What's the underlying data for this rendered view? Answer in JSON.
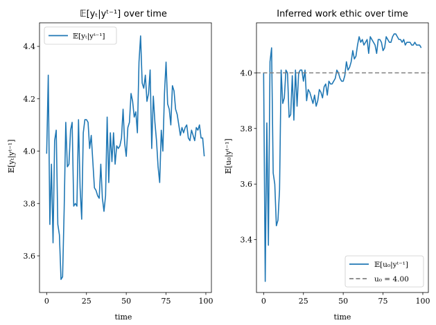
{
  "chart_data": [
    {
      "type": "line",
      "title": "𝔼[yₜ|yᵗ⁻¹] over time",
      "xlabel": "time",
      "ylabel": "𝔼[yₜ|yᵗ⁻¹]",
      "xlim": [
        -4.5,
        103.5
      ],
      "ylim": [
        3.46,
        4.49
      ],
      "xticks": [
        0,
        25,
        50,
        75,
        100
      ],
      "yticks": [
        3.6,
        3.8,
        4.0,
        4.2,
        4.4
      ],
      "ytick_labels": [
        "3.6",
        "3.8",
        "4.0",
        "4.2",
        "4.4"
      ],
      "legend_position": "upper left",
      "series": [
        {
          "name": "𝔼[yₜ|yᵗ⁻¹]",
          "color": "#1f77b4",
          "x": [
            0,
            1,
            2,
            3,
            4,
            5,
            6,
            7,
            8,
            9,
            10,
            11,
            12,
            13,
            14,
            15,
            16,
            17,
            18,
            19,
            20,
            21,
            22,
            23,
            24,
            25,
            26,
            27,
            28,
            29,
            30,
            31,
            32,
            33,
            34,
            35,
            36,
            37,
            38,
            39,
            40,
            41,
            42,
            43,
            44,
            45,
            46,
            47,
            48,
            49,
            50,
            51,
            52,
            53,
            54,
            55,
            56,
            57,
            58,
            59,
            60,
            61,
            62,
            63,
            64,
            65,
            66,
            67,
            68,
            69,
            70,
            71,
            72,
            73,
            74,
            75,
            76,
            77,
            78,
            79,
            80,
            81,
            82,
            83,
            84,
            85,
            86,
            87,
            88,
            89,
            90,
            91,
            92,
            93,
            94,
            95,
            96,
            97,
            98,
            99
          ],
          "y": [
            3.99,
            4.29,
            3.72,
            3.95,
            3.65,
            4.04,
            4.08,
            3.72,
            3.68,
            3.51,
            3.52,
            3.78,
            4.11,
            3.94,
            3.95,
            4.08,
            4.11,
            3.79,
            3.8,
            3.79,
            4.12,
            3.86,
            3.74,
            4.07,
            4.12,
            4.12,
            4.11,
            4.01,
            4.06,
            3.96,
            3.86,
            3.85,
            3.83,
            3.82,
            3.95,
            3.82,
            3.77,
            3.83,
            4.13,
            3.88,
            4.07,
            3.96,
            4.07,
            3.95,
            4.02,
            4.01,
            4.02,
            4.05,
            4.16,
            4.03,
            3.98,
            4.09,
            4.11,
            4.22,
            4.19,
            4.13,
            4.15,
            4.07,
            4.34,
            4.44,
            4.26,
            4.24,
            4.29,
            4.19,
            4.22,
            4.31,
            4.01,
            4.21,
            4.11,
            4.04,
            3.94,
            3.88,
            4.08,
            4.0,
            4.22,
            4.34,
            4.18,
            4.16,
            4.1,
            4.25,
            4.23,
            4.16,
            4.14,
            4.1,
            4.06,
            4.09,
            4.07,
            4.09,
            4.1,
            4.05,
            4.04,
            4.08,
            4.06,
            4.04,
            4.09,
            4.08,
            4.1,
            4.05,
            4.05,
            3.98
          ]
        }
      ]
    },
    {
      "type": "line",
      "title": "Inferred work ethic over time",
      "xlabel": "time",
      "ylabel": "𝔼[u₀|yᵗ⁻¹]",
      "xlim": [
        -4.5,
        103.5
      ],
      "ylim": [
        3.21,
        4.18
      ],
      "xticks": [
        0,
        25,
        50,
        75,
        100
      ],
      "yticks": [
        3.4,
        3.6,
        3.8,
        4.0
      ],
      "ytick_labels": [
        "3.4",
        "3.6",
        "3.8",
        "4.0"
      ],
      "legend_position": "lower right",
      "series": [
        {
          "name": "𝔼[u₀|yᵗ⁻¹]",
          "color": "#1f77b4",
          "style": "solid",
          "x": [
            0,
            1,
            2,
            3,
            4,
            5,
            6,
            7,
            8,
            9,
            10,
            11,
            12,
            13,
            14,
            15,
            16,
            17,
            18,
            19,
            20,
            21,
            22,
            23,
            24,
            25,
            26,
            27,
            28,
            29,
            30,
            31,
            32,
            33,
            34,
            35,
            36,
            37,
            38,
            39,
            40,
            41,
            42,
            43,
            44,
            45,
            46,
            47,
            48,
            49,
            50,
            51,
            52,
            53,
            54,
            55,
            56,
            57,
            58,
            59,
            60,
            61,
            62,
            63,
            64,
            65,
            66,
            67,
            68,
            69,
            70,
            71,
            72,
            73,
            74,
            75,
            76,
            77,
            78,
            79,
            80,
            81,
            82,
            83,
            84,
            85,
            86,
            87,
            88,
            89,
            90,
            91,
            92,
            93,
            94,
            95,
            96,
            97,
            98,
            99
          ],
          "y": [
            4.0,
            3.25,
            3.82,
            3.38,
            4.04,
            4.09,
            3.64,
            3.6,
            3.45,
            3.47,
            3.58,
            4.01,
            3.89,
            3.91,
            4.01,
            4.0,
            3.84,
            3.85,
            3.99,
            3.83,
            4.01,
            3.88,
            4.0,
            4.01,
            4.01,
            3.97,
            4.01,
            3.9,
            3.94,
            3.93,
            3.91,
            3.89,
            3.92,
            3.88,
            3.9,
            3.94,
            3.93,
            3.91,
            3.95,
            3.96,
            3.92,
            3.97,
            3.96,
            3.96,
            3.97,
            3.98,
            4.01,
            4.0,
            3.98,
            3.97,
            3.97,
            3.99,
            4.04,
            4.01,
            4.02,
            4.04,
            4.08,
            4.05,
            4.06,
            4.1,
            4.13,
            4.11,
            4.12,
            4.1,
            4.11,
            4.12,
            4.07,
            4.13,
            4.12,
            4.11,
            4.1,
            4.07,
            4.12,
            4.12,
            4.11,
            4.08,
            4.09,
            4.13,
            4.12,
            4.11,
            4.11,
            4.13,
            4.14,
            4.14,
            4.13,
            4.12,
            4.12,
            4.11,
            4.12,
            4.1,
            4.11,
            4.11,
            4.11,
            4.1,
            4.1,
            4.11,
            4.1,
            4.1,
            4.1,
            4.09
          ]
        },
        {
          "name": "u₀ = 4.00",
          "color": "#808080",
          "style": "dashed",
          "y_constant": 4.0
        }
      ]
    }
  ]
}
